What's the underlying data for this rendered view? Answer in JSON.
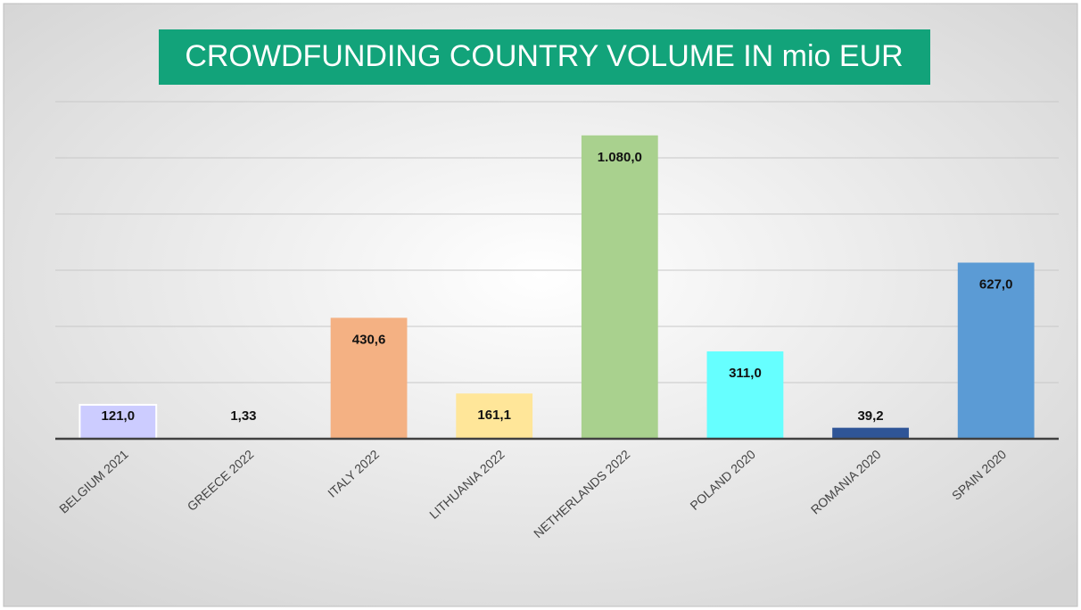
{
  "chart_data": {
    "type": "bar",
    "title": "CROWDFUNDING COUNTRY VOLUME IN mio EUR",
    "categories": [
      "BELGIUM 2021",
      "GREECE 2022",
      "ITALY 2022",
      "LITHUANIA 2022",
      "NETHERLANDS 2022",
      "POLAND 2020",
      "ROMANIA 2020",
      "SPAIN 2020"
    ],
    "values": [
      121,
      1.33,
      430.6,
      161.1,
      1080,
      311,
      39.2,
      627
    ],
    "value_labels": [
      "121,0",
      "1,33",
      "430,6",
      "161,1",
      "1.080,0",
      "311,0",
      "39,2",
      "627,0"
    ],
    "colors": [
      "#ccccff",
      "#d9d9d9",
      "#f4b183",
      "#ffe699",
      "#a9d18e",
      "#66ffff",
      "#2f5597",
      "#5b9bd5"
    ],
    "ylim": [
      0,
      1200
    ],
    "yticks": [
      0,
      200,
      400,
      600,
      800,
      1000,
      1200
    ],
    "grid": true
  }
}
